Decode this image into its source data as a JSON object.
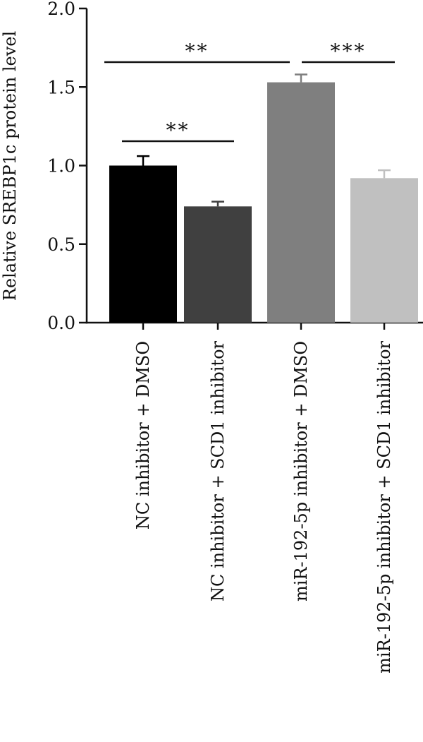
{
  "chart_data": {
    "type": "bar",
    "title": "",
    "xlabel": "",
    "ylabel": "Relative SREBP1c protein level",
    "ylim": [
      0,
      2.0
    ],
    "yticks": [
      0.0,
      0.5,
      1.0,
      1.5,
      2.0
    ],
    "ytick_labels": [
      "0.0",
      "0.5",
      "1.0",
      "1.5",
      "2.0"
    ],
    "grid": false,
    "legend": "none",
    "categories": [
      "NC inhibitor + DMSO",
      "NC inhibitor + SCD1 inhibitor",
      "miR-192-5p inhibitor + DMSO",
      "miR-192-5p inhibitor + SCD1 inhibitor"
    ],
    "values": [
      1.0,
      0.74,
      1.53,
      0.92
    ],
    "errors": [
      0.06,
      0.03,
      0.05,
      0.05
    ],
    "colors": [
      "#000000",
      "#404040",
      "#7f7f7f",
      "#c0c0c0"
    ],
    "significance": [
      {
        "from": 0,
        "to": 1,
        "label": "**"
      },
      {
        "from": 0,
        "to": 2,
        "label": "**"
      },
      {
        "from": 2,
        "to": 3,
        "label": "***"
      }
    ]
  }
}
